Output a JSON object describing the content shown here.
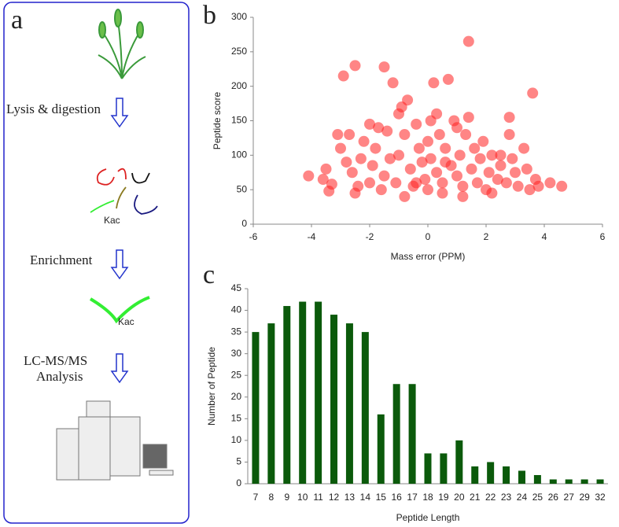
{
  "workflow": {
    "panel_label": "a",
    "steps": [
      [
        "Lysis & digestion"
      ],
      [
        "Enrichment"
      ],
      [
        "LC-MS/MS",
        "Analysis"
      ]
    ],
    "site_labels": [
      "Kac",
      "Kac"
    ]
  },
  "chart_data": [
    {
      "type": "scatter",
      "panel_label": "b",
      "x_label": "Mass error (PPM)",
      "y_label": "Peptide score",
      "color": "#ff2020",
      "x": [
        -4.1,
        -3.6,
        -3.4,
        -3.3,
        -3.1,
        -3,
        -2.9,
        -2.8,
        -2.7,
        -2.6,
        -2.5,
        -2.4,
        -2.3,
        -2.2,
        -2,
        -1.9,
        -1.8,
        -1.7,
        -1.6,
        -1.5,
        -1.5,
        -1.4,
        -1.3,
        -1.2,
        -1.1,
        -1,
        -0.9,
        -0.8,
        -0.7,
        -0.6,
        -0.5,
        -0.4,
        -0.3,
        -0.2,
        -0.1,
        0,
        0,
        0.1,
        0.1,
        0.2,
        0.3,
        0.4,
        0.5,
        0.6,
        0.7,
        0.8,
        0.9,
        1,
        1.1,
        1.2,
        1.3,
        1.4,
        1.4,
        1.5,
        1.6,
        1.7,
        1.8,
        1.9,
        2,
        2.1,
        2.2,
        2.4,
        2.5,
        2.7,
        2.8,
        2.8,
        2.9,
        3,
        3.1,
        3.3,
        3.4,
        3.5,
        3.6,
        3.7,
        3.8,
        4.2,
        4.6,
        -0.8,
        0.5,
        -2.5,
        -1,
        0.3,
        1.2,
        2.2,
        -3.5,
        -2,
        1,
        -0.4,
        0.6,
        2.5
      ],
      "values": [
        70,
        65,
        48,
        58,
        130,
        110,
        215,
        90,
        130,
        75,
        230,
        55,
        95,
        120,
        60,
        85,
        110,
        140,
        50,
        228,
        70,
        135,
        95,
        205,
        60,
        100,
        170,
        130,
        180,
        80,
        55,
        145,
        110,
        90,
        65,
        120,
        50,
        150,
        95,
        205,
        75,
        130,
        60,
        110,
        210,
        85,
        150,
        70,
        100,
        55,
        130,
        155,
        265,
        80,
        110,
        60,
        95,
        120,
        50,
        75,
        100,
        65,
        85,
        60,
        130,
        155,
        95,
        75,
        55,
        110,
        80,
        50,
        190,
        65,
        55,
        60,
        55,
        40,
        45,
        45,
        160,
        160,
        40,
        45,
        80,
        145,
        140,
        60,
        90,
        100
      ],
      "xlim": [
        -6,
        6
      ],
      "xticks": [
        -6,
        -4,
        -2,
        0,
        2,
        4,
        6
      ],
      "ylim": [
        0,
        300
      ],
      "yticks": [
        0,
        50,
        100,
        150,
        200,
        250,
        300
      ]
    },
    {
      "type": "bar",
      "panel_label": "c",
      "x_label": "Peptide Length",
      "y_label": "Number of Peptide",
      "color": "#0b5a0b",
      "categories": [
        "7",
        "8",
        "9",
        "10",
        "11",
        "12",
        "13",
        "14",
        "15",
        "16",
        "17",
        "18",
        "19",
        "20",
        "21",
        "22",
        "23",
        "24",
        "25",
        "26",
        "27",
        "29",
        "32"
      ],
      "values": [
        35,
        37,
        41,
        42,
        42,
        39,
        37,
        35,
        16,
        23,
        23,
        7,
        7,
        10,
        4,
        5,
        4,
        3,
        2,
        1,
        1,
        1,
        1
      ],
      "ylim": [
        0,
        45
      ],
      "yticks": [
        0,
        5,
        10,
        15,
        20,
        25,
        30,
        35,
        40,
        45
      ]
    }
  ]
}
